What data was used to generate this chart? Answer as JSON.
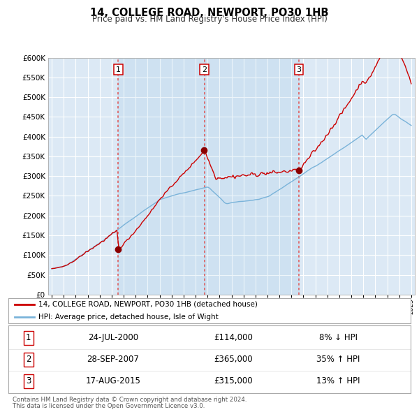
{
  "title": "14, COLLEGE ROAD, NEWPORT, PO30 1HB",
  "subtitle": "Price paid vs. HM Land Registry's House Price Index (HPI)",
  "bg_color": "#dce9f5",
  "fig_bg_color": "#ffffff",
  "grid_color": "#ffffff",
  "hpi_line_color": "#7ab3d9",
  "price_line_color": "#cc0000",
  "sale_marker_color": "#8b0000",
  "vline_color": "#e06060",
  "ylim": [
    0,
    600000
  ],
  "ytick_values": [
    0,
    50000,
    100000,
    150000,
    200000,
    250000,
    300000,
    350000,
    400000,
    450000,
    500000,
    550000,
    600000
  ],
  "sale1_date": 2000.55,
  "sale1_price": 114000,
  "sale2_date": 2007.73,
  "sale2_price": 365000,
  "sale3_date": 2015.62,
  "sale3_price": 315000,
  "legend_line1": "14, COLLEGE ROAD, NEWPORT, PO30 1HB (detached house)",
  "legend_line2": "HPI: Average price, detached house, Isle of Wight",
  "table_row1": [
    "1",
    "24-JUL-2000",
    "£114,000",
    "8% ↓ HPI"
  ],
  "table_row2": [
    "2",
    "28-SEP-2007",
    "£365,000",
    "35% ↑ HPI"
  ],
  "table_row3": [
    "3",
    "17-AUG-2015",
    "£315,000",
    "13% ↑ HPI"
  ],
  "footnote1": "Contains HM Land Registry data © Crown copyright and database right 2024.",
  "footnote2": "This data is licensed under the Open Government Licence v3.0."
}
